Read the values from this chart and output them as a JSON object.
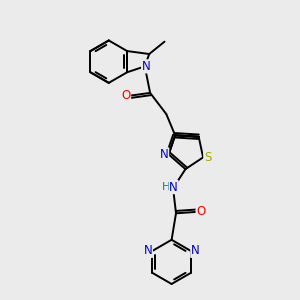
{
  "bg_color": "#ebebeb",
  "bond_color": "#000000",
  "atom_colors": {
    "N": "#0000cc",
    "O": "#ff0000",
    "S": "#aaaa00",
    "C": "#000000",
    "H": "#008888"
  },
  "line_width": 1.4,
  "font_size": 8.5,
  "fig_size": [
    3.0,
    3.0
  ]
}
